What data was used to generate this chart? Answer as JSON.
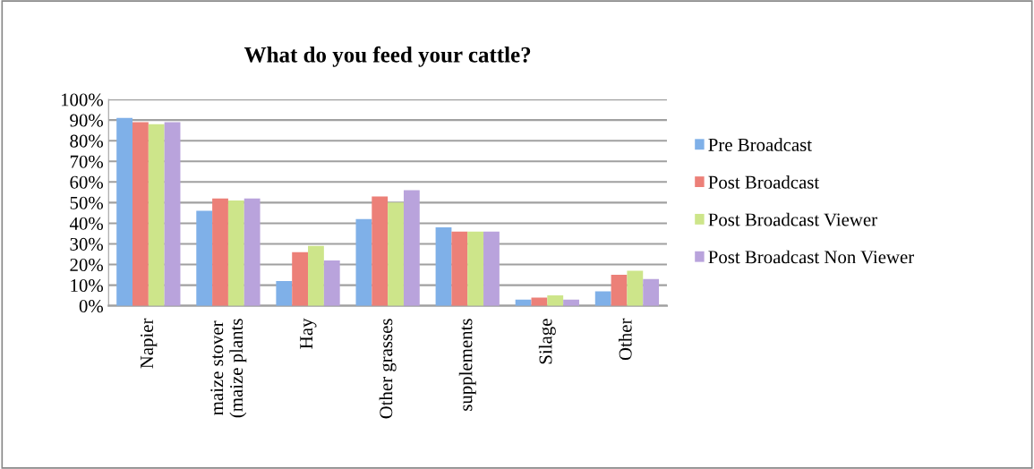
{
  "chart_data": {
    "type": "bar",
    "title": "What do you feed your cattle?",
    "categories": [
      "Napier",
      "maize stover\n(maize plants",
      "Hay",
      "Other grasses",
      "supplements",
      "Silage",
      "Other"
    ],
    "series": [
      {
        "name": "Pre Broadcast",
        "color": "#7fb0e8",
        "values": [
          91,
          46,
          12,
          42,
          38,
          3,
          7
        ]
      },
      {
        "name": "Post Broadcast",
        "color": "#ec8078",
        "values": [
          89,
          52,
          26,
          53,
          36,
          4,
          15
        ]
      },
      {
        "name": "Post Broadcast Viewer",
        "color": "#cde58a",
        "values": [
          88,
          51,
          29,
          50,
          36,
          5,
          17
        ]
      },
      {
        "name": "Post Broadcast Non Viewer",
        "color": "#b9a3dc",
        "values": [
          89,
          52,
          22,
          56,
          36,
          3,
          13
        ]
      }
    ],
    "ylim": [
      0,
      100
    ],
    "yticks": [
      {
        "value": 0,
        "label": "0%"
      },
      {
        "value": 10,
        "label": "10%"
      },
      {
        "value": 20,
        "label": "20%"
      },
      {
        "value": 30,
        "label": "30%"
      },
      {
        "value": 40,
        "label": "40%"
      },
      {
        "value": 50,
        "label": "50%"
      },
      {
        "value": 60,
        "label": "60%"
      },
      {
        "value": 70,
        "label": "70%"
      },
      {
        "value": 80,
        "label": "80%"
      },
      {
        "value": 90,
        "label": "90%"
      },
      {
        "value": 100,
        "label": "100%"
      }
    ],
    "grid": "y",
    "legend": "right"
  }
}
